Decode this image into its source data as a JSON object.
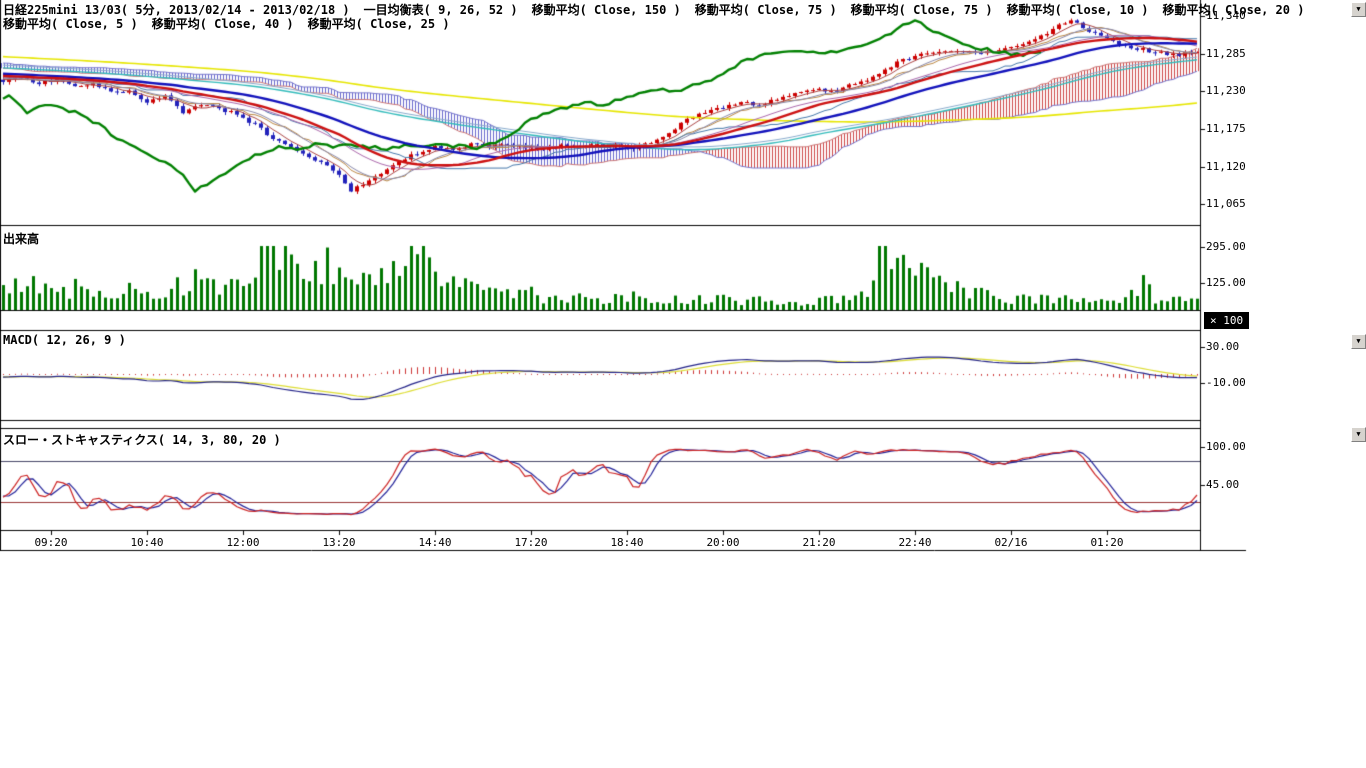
{
  "header": {
    "row1": [
      "日経225mini 13/03( 5分, 2013/02/14 - 2013/02/18 )",
      "一目均衡表( 9, 26, 52 )",
      "移動平均( Close, 150 )",
      "移動平均( Close, 75 )",
      "移動平均( Close, 75 )",
      "移動平均( Close, 10 )",
      "移動平均( Close, 20 )"
    ],
    "row2": [
      "移動平均( Close, 5 )",
      "移動平均( Close, 40 )",
      "移動平均( Close, 25 )"
    ]
  },
  "panels": {
    "volume_label": "出来高",
    "macd_label": "MACD( 12, 26, 9 )",
    "stoch_label": "スロー・ストキャスティクス( 14, 3, 80, 20 )",
    "multiplier_badge": "× 100"
  },
  "controls": {
    "dropdown_glyph": "▼"
  },
  "chart_data": {
    "type": "candlestick",
    "title": "日経225mini 13/03( 5分, 2013/02/14 - 2013/02/18 )",
    "bar_interval": "5min",
    "bars": 200,
    "indicators": [
      "一目均衡表(9,26,52)",
      "移動平均 Close 150/75/75/10/20/5/40/25",
      "MACD(12,26,9)",
      "スロー・ストキャスティクス(14,3,80,20)"
    ],
    "time_labels": [
      {
        "label": "09:20",
        "bar": 8
      },
      {
        "label": "10:40",
        "bar": 24
      },
      {
        "label": "12:00",
        "bar": 40
      },
      {
        "label": "13:20",
        "bar": 56
      },
      {
        "label": "14:40",
        "bar": 72
      },
      {
        "label": "17:20",
        "bar": 88
      },
      {
        "label": "18:40",
        "bar": 104
      },
      {
        "label": "20:00",
        "bar": 120
      },
      {
        "label": "21:20",
        "bar": 136
      },
      {
        "label": "22:40",
        "bar": 152
      },
      {
        "label": "02/16",
        "bar": 168
      },
      {
        "label": "01:20",
        "bar": 184
      }
    ],
    "price_panel": {
      "ylim": [
        11035,
        11363.5
      ],
      "axis": [
        {
          "label": "11,340",
          "value": 11340
        },
        {
          "label": "11,285",
          "value": 11285
        },
        {
          "label": "11,230",
          "value": 11230
        },
        {
          "label": "11,175",
          "value": 11175
        },
        {
          "label": "11,120",
          "value": 11120
        },
        {
          "label": "11,065",
          "value": 11065
        }
      ],
      "path": [
        [
          0,
          11246
        ],
        [
          3,
          11252
        ],
        [
          6,
          11242
        ],
        [
          9,
          11248
        ],
        [
          12,
          11236
        ],
        [
          15,
          11242
        ],
        [
          18,
          11228
        ],
        [
          21,
          11232
        ],
        [
          24,
          11215
        ],
        [
          27,
          11222
        ],
        [
          30,
          11200
        ],
        [
          33,
          11210
        ],
        [
          36,
          11205
        ],
        [
          39,
          11196
        ],
        [
          42,
          11182
        ],
        [
          45,
          11160
        ],
        [
          48,
          11148
        ],
        [
          51,
          11135
        ],
        [
          54,
          11122
        ],
        [
          56,
          11108
        ],
        [
          58,
          11086
        ],
        [
          60,
          11094
        ],
        [
          62,
          11104
        ],
        [
          64,
          11116
        ],
        [
          66,
          11128
        ],
        [
          69,
          11140
        ],
        [
          72,
          11150
        ],
        [
          75,
          11144
        ],
        [
          78,
          11154
        ],
        [
          81,
          11148
        ],
        [
          84,
          11152
        ],
        [
          87,
          11149
        ],
        [
          90,
          11146
        ],
        [
          93,
          11151
        ],
        [
          96,
          11149
        ],
        [
          99,
          11152
        ],
        [
          102,
          11150
        ],
        [
          105,
          11147
        ],
        [
          108,
          11156
        ],
        [
          111,
          11170
        ],
        [
          114,
          11188
        ],
        [
          117,
          11199
        ],
        [
          120,
          11206
        ],
        [
          123,
          11214
        ],
        [
          126,
          11209
        ],
        [
          129,
          11219
        ],
        [
          132,
          11226
        ],
        [
          135,
          11234
        ],
        [
          138,
          11229
        ],
        [
          141,
          11239
        ],
        [
          144,
          11247
        ],
        [
          147,
          11262
        ],
        [
          150,
          11276
        ],
        [
          153,
          11283
        ],
        [
          156,
          11287
        ],
        [
          159,
          11291
        ],
        [
          162,
          11286
        ],
        [
          165,
          11289
        ],
        [
          168,
          11293
        ],
        [
          171,
          11302
        ],
        [
          174,
          11314
        ],
        [
          176,
          11326
        ],
        [
          178,
          11332
        ],
        [
          180,
          11324
        ],
        [
          182,
          11315
        ],
        [
          184,
          11308
        ],
        [
          187,
          11297
        ],
        [
          190,
          11291
        ],
        [
          193,
          11286
        ],
        [
          196,
          11283
        ],
        [
          199,
          11290
        ]
      ],
      "prehistory": [
        [
          -150,
          11315
        ],
        [
          -120,
          11300
        ],
        [
          -90,
          11288
        ],
        [
          -60,
          11276
        ],
        [
          -40,
          11266
        ],
        [
          -20,
          11256
        ],
        [
          -5,
          11250
        ],
        [
          -1,
          11247
        ]
      ]
    },
    "volume_panel": {
      "ylim": [
        0,
        307
      ],
      "axis": [
        {
          "label": "295.00",
          "value": 295
        },
        {
          "label": "125.00",
          "value": 125
        }
      ],
      "envelope": [
        [
          0,
          90
        ],
        [
          4,
          120
        ],
        [
          8,
          75
        ],
        [
          12,
          105
        ],
        [
          16,
          70
        ],
        [
          20,
          115
        ],
        [
          24,
          65
        ],
        [
          28,
          95
        ],
        [
          32,
          135
        ],
        [
          36,
          85
        ],
        [
          40,
          150
        ],
        [
          42,
          270
        ],
        [
          44,
          335
        ],
        [
          46,
          300
        ],
        [
          48,
          250
        ],
        [
          50,
          205
        ],
        [
          52,
          165
        ],
        [
          54,
          225
        ],
        [
          56,
          185
        ],
        [
          58,
          245
        ],
        [
          60,
          165
        ],
        [
          62,
          125
        ],
        [
          64,
          185
        ],
        [
          66,
          145
        ],
        [
          68,
          295
        ],
        [
          70,
          225
        ],
        [
          72,
          155
        ],
        [
          74,
          105
        ],
        [
          76,
          135
        ],
        [
          78,
          95
        ],
        [
          80,
          115
        ],
        [
          82,
          75
        ],
        [
          84,
          95
        ],
        [
          86,
          65
        ],
        [
          88,
          85
        ],
        [
          90,
          55
        ],
        [
          92,
          65
        ],
        [
          94,
          45
        ],
        [
          96,
          55
        ],
        [
          100,
          48
        ],
        [
          104,
          62
        ],
        [
          108,
          52
        ],
        [
          112,
          58
        ],
        [
          116,
          46
        ],
        [
          120,
          52
        ],
        [
          124,
          42
        ],
        [
          128,
          46
        ],
        [
          132,
          36
        ],
        [
          136,
          42
        ],
        [
          140,
          52
        ],
        [
          144,
          65
        ],
        [
          146,
          240
        ],
        [
          148,
          270
        ],
        [
          150,
          200
        ],
        [
          152,
          235
        ],
        [
          154,
          155
        ],
        [
          156,
          125
        ],
        [
          158,
          105
        ],
        [
          160,
          85
        ],
        [
          164,
          65
        ],
        [
          168,
          52
        ],
        [
          172,
          46
        ],
        [
          176,
          58
        ],
        [
          180,
          42
        ],
        [
          184,
          36
        ],
        [
          188,
          65
        ],
        [
          190,
          110
        ],
        [
          192,
          52
        ],
        [
          196,
          42
        ],
        [
          199,
          46
        ]
      ]
    },
    "macd_panel": {
      "params": [
        12,
        26,
        9
      ],
      "axis": [
        {
          "label": "30.00",
          "value": 30
        },
        {
          "label": "-10.00",
          "value": -10
        }
      ]
    },
    "stoch_panel": {
      "params": [
        14,
        3,
        80,
        20
      ],
      "levels": [
        80,
        20
      ],
      "axis": [
        {
          "label": "100.00",
          "value": 100
        },
        {
          "label": "45.00",
          "value": 45
        }
      ]
    },
    "colors": {
      "candle_up": "#cc0000",
      "candle_down": "#2222bb",
      "chikou": "#008000",
      "ma25_thick": "#cc1111",
      "ma40_thick": "#1111bb",
      "ma150": "#e6e600",
      "ma75a": "#33bbbb",
      "ma75b": "#88aacc",
      "ma5": "#aa4444",
      "ma10": "#8888aa",
      "ma20": "#aa66aa",
      "tenkan": "#bb8844",
      "kijun": "#4477aa",
      "cloud_up": "#cc4444",
      "cloud_down": "#6666cc",
      "span_a": "#cc7777",
      "span_b": "#7777cc",
      "volume": "#007700",
      "macd_line": "#222288",
      "macd_signal": "#dddd33",
      "macd_hist": "#cc3333",
      "stoch_k": "#cc2222",
      "stoch_d": "#222299",
      "level_80": "#444466",
      "level_20": "#993333",
      "frame": "#000000"
    }
  }
}
